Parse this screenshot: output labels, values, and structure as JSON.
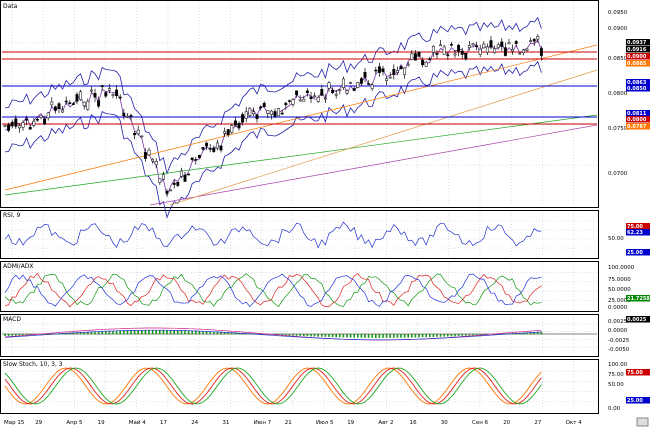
{
  "panels": {
    "price": {
      "title": "Data",
      "axis_labels": [
        "0.0950",
        "0.0900",
        "0.0850",
        "0.0800",
        "0.0750",
        "0.0700"
      ],
      "badges": [
        {
          "text": "0.0937",
          "bg": "#000000",
          "fg": "#ffffff"
        },
        {
          "text": "0.0916",
          "bg": "#000000",
          "fg": "#ffffff"
        },
        {
          "text": "0.0900",
          "bg": "#cc0000",
          "fg": "#ffffff"
        },
        {
          "text": "0.0885",
          "bg": "#ff7700",
          "fg": "#ffffff"
        },
        {
          "text": "0.0863",
          "bg": "#0000cc",
          "fg": "#ffffff"
        },
        {
          "text": "0.0850",
          "bg": "#0000cc",
          "fg": "#ffffff"
        },
        {
          "text": "0.0811",
          "bg": "#0000cc",
          "fg": "#ffffff"
        },
        {
          "text": "0.0800",
          "bg": "#cc0000",
          "fg": "#ffffff"
        },
        {
          "text": "0.0787",
          "bg": "#ff7700",
          "fg": "#ffffff"
        }
      ]
    },
    "rsi": {
      "title": "RSI, 9",
      "axis_labels": [
        "50.00"
      ],
      "badges": [
        {
          "text": "75.00",
          "bg": "#cc0000",
          "fg": "#ffffff"
        },
        {
          "text": "62.23",
          "bg": "#0000cc",
          "fg": "#ffffff"
        },
        {
          "text": "25.00",
          "bg": "#0000cc",
          "fg": "#ffffff"
        }
      ]
    },
    "adx": {
      "title": "ADMI/ADX",
      "axis_labels": [
        "100.0000",
        "75.0000",
        "50.0000",
        "25.0000",
        "0.0000"
      ],
      "badges": [
        {
          "text": "21.7258",
          "bg": "#008800",
          "fg": "#ffffff"
        }
      ]
    },
    "macd": {
      "title": "MACD",
      "axis_labels": [
        "0.0025",
        "0.0000",
        "-0.0025",
        "-0.0050"
      ],
      "badges": [
        {
          "text": "0.0025",
          "bg": "#000000",
          "fg": "#ffffff"
        }
      ]
    },
    "stoch": {
      "title": "Slow Stoch, 10, 3, 3",
      "axis_labels": [
        "100.00",
        "75.00",
        "50.00",
        "0.00"
      ],
      "badges": [
        {
          "text": "75.00",
          "bg": "#cc0000",
          "fg": "#ffffff"
        },
        {
          "text": "25.00",
          "bg": "#0000cc",
          "fg": "#ffffff"
        }
      ]
    }
  },
  "x_axis": {
    "labels": [
      "Мар 15",
      "29",
      "Апр 5",
      "19",
      "Май 4",
      "17",
      "24",
      "31",
      "Июн 7",
      "21",
      "Июл 5",
      "19",
      "Авг 2",
      "16",
      "30",
      "Сен 6",
      "20",
      "27",
      "Окт 4"
    ]
  },
  "colors": {
    "grid": "#c8c8c8",
    "candle_up": "#ffffff",
    "candle_down": "#000000",
    "bollinger": "#2222aa",
    "rsi_line": "#2233cc",
    "adx_green": "#119911",
    "adx_red": "#dd2222",
    "adx_blue": "#2233dd",
    "macd_hist": "#119911",
    "stoch_orange": "#ff7700",
    "stoch_red": "#dd2222",
    "stoch_green": "#22aa22"
  }
}
